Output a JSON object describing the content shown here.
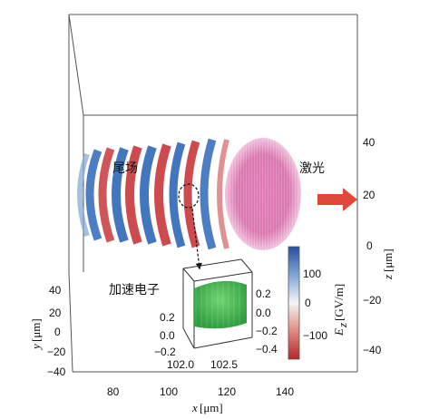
{
  "labels": {
    "wake": "尾场",
    "laser": "激光",
    "accelerated_electron": "加速电子"
  },
  "axes": {
    "x": {
      "var": "x",
      "unit": "[μm]",
      "ticks": [
        "80",
        "100",
        "120",
        "140"
      ]
    },
    "y": {
      "var": "y",
      "unit": "[μm]",
      "ticks": [
        "40",
        "20",
        "0",
        "−20",
        "−40"
      ]
    },
    "z": {
      "var": "z",
      "unit": "[μm]",
      "ticks": [
        "40",
        "20",
        "0",
        "−20",
        "−40"
      ]
    }
  },
  "colorbar": {
    "var": "E",
    "subscript": "z",
    "unit": "[GV/m]",
    "ticks": [
      "100",
      "0",
      "−100"
    ],
    "colors": [
      "#2a4fa0",
      "#7fa6d6",
      "#f4f4f4",
      "#e08a80",
      "#b5262a"
    ]
  },
  "inset": {
    "x_ticks": [
      "102.0",
      "102.5"
    ],
    "y_ticks": [
      "0.2",
      "0.0",
      "−0.2"
    ],
    "z_ticks": [
      "0.2",
      "0.0",
      "−0.2",
      "−0.4"
    ],
    "color": "#3cb54a"
  },
  "colors": {
    "positive_field": "#2e67b8",
    "negative_field": "#c8373b",
    "laser_pulse": "#d76fa8",
    "arrow": "#e0493a"
  }
}
